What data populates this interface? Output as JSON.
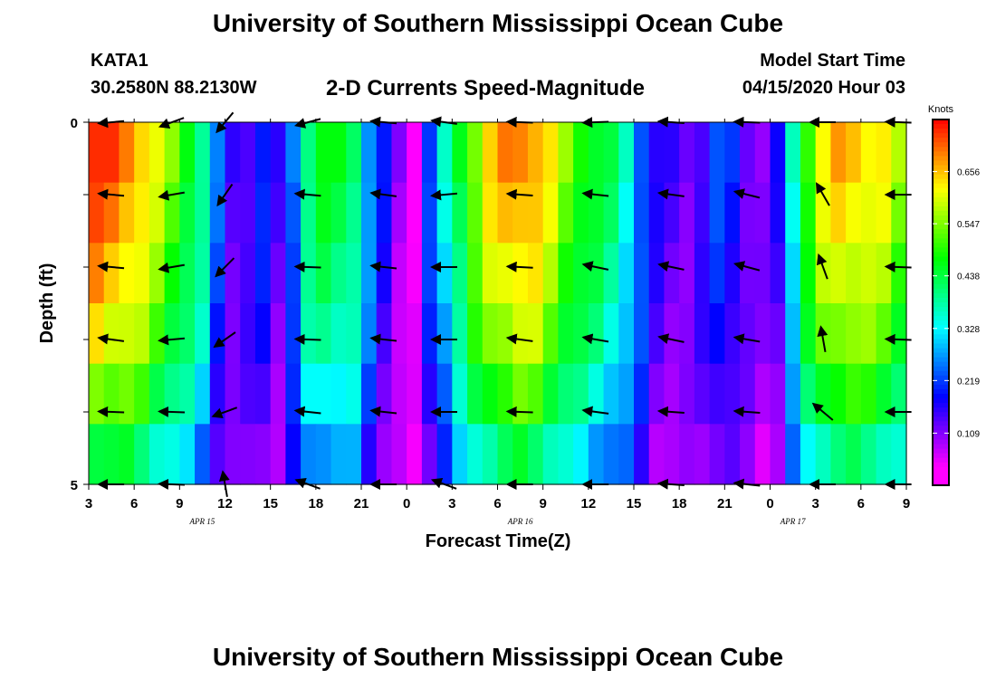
{
  "header": {
    "title": "University of Southern Mississippi Ocean Cube",
    "station_id": "KATA1",
    "station_location": "30.2580N 88.2130W",
    "plot_title": "2-D Currents Speed-Magnitude",
    "model_start_label": "Model Start Time",
    "model_start_time": "04/15/2020 Hour 03"
  },
  "footer": {
    "title": "University of Southern Mississippi Ocean Cube"
  },
  "chart_data": {
    "type": "heatmap",
    "title": "2-D Currents Speed-Magnitude",
    "xlabel": "Forecast Time(Z)",
    "ylabel": "Depth (ft)",
    "x_ticks": [
      "3",
      "6",
      "9",
      "12",
      "15",
      "18",
      "21",
      "0",
      "3",
      "6",
      "9",
      "12",
      "15",
      "18",
      "21",
      "0",
      "3",
      "6",
      "9"
    ],
    "date_labels": [
      {
        "label": "APR 15",
        "after_tick": 3
      },
      {
        "label": "APR 16",
        "after_tick": 10
      },
      {
        "label": "APR 17",
        "after_tick": 16
      }
    ],
    "y_ticks": [
      "0",
      "5"
    ],
    "ylim": [
      0,
      5
    ],
    "forecast_hours": 54,
    "depth_levels": 5,
    "colorbar": {
      "unit": "Knots",
      "ticks": [
        "0.656",
        "0.547",
        "0.438",
        "0.328",
        "0.219",
        "0.109"
      ],
      "tick_values": [
        0.656,
        0.547,
        0.438,
        0.328,
        0.219,
        0.109
      ],
      "range": [
        0.0,
        0.765
      ]
    },
    "speed_profile_by_hour": [
      0.74,
      0.72,
      0.7,
      0.66,
      0.6,
      0.54,
      0.48,
      0.4,
      0.24,
      0.15,
      0.16,
      0.2,
      0.14,
      0.26,
      0.42,
      0.46,
      0.45,
      0.43,
      0.28,
      0.18,
      0.1,
      0.05,
      0.22,
      0.34,
      0.46,
      0.56,
      0.64,
      0.68,
      0.7,
      0.68,
      0.62,
      0.55,
      0.5,
      0.46,
      0.42,
      0.36,
      0.25,
      0.16,
      0.14,
      0.13,
      0.16,
      0.22,
      0.2,
      0.14,
      0.11,
      0.16,
      0.36,
      0.52,
      0.62,
      0.66,
      0.66,
      0.64,
      0.62,
      0.56
    ],
    "depth_factor": [
      1.0,
      0.96,
      0.91,
      0.85,
      0.75,
      0.62
    ],
    "vectors": {
      "x_hours": [
        1,
        5,
        8.5,
        14,
        19,
        23,
        28,
        33,
        38,
        43,
        48,
        53
      ],
      "angles_deg": [
        [
          185,
          200,
          230,
          195,
          175,
          172,
          178,
          182,
          176,
          178,
          180,
          178
        ],
        [
          175,
          190,
          235,
          175,
          172,
          185,
          176,
          174,
          172,
          166,
          120,
          180
        ],
        [
          175,
          190,
          225,
          178,
          174,
          180,
          177,
          168,
          168,
          165,
          110,
          178
        ],
        [
          172,
          185,
          215,
          178,
          174,
          180,
          172,
          170,
          168,
          170,
          100,
          178
        ],
        [
          178,
          178,
          200,
          174,
          174,
          180,
          178,
          172,
          176,
          176,
          140,
          180
        ],
        [
          180,
          178,
          100,
          160,
          180,
          160,
          180,
          180,
          176,
          174,
          180,
          180
        ]
      ]
    }
  }
}
